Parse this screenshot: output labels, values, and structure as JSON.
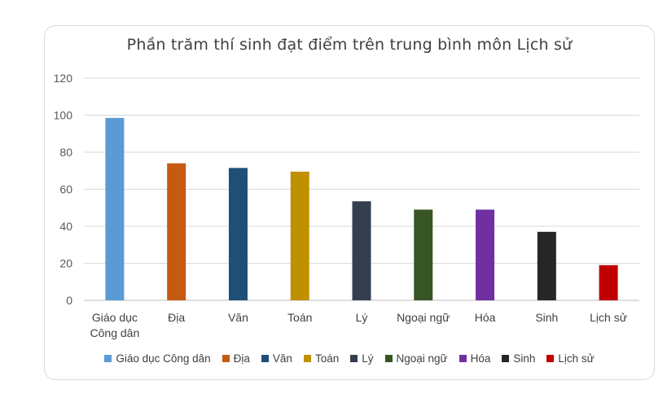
{
  "chart_data": {
    "type": "bar",
    "title": "Phần trăm thí sinh đạt điểm trên trung bình môn Lịch sử",
    "categories": [
      "Giáo dục Công dân",
      "Địa",
      "Văn",
      "Toán",
      "Lý",
      "Ngoại ngữ",
      "Hóa",
      "Sinh",
      "Lịch sử"
    ],
    "category_labels": [
      [
        "Giáo dục",
        "Công dân"
      ],
      [
        "Địa"
      ],
      [
        "Văn"
      ],
      [
        "Toán"
      ],
      [
        "Lý"
      ],
      [
        "Ngoại ngữ"
      ],
      [
        "Hóa"
      ],
      [
        "Sinh"
      ],
      [
        "Lịch sử"
      ]
    ],
    "values": [
      98.5,
      74,
      71.5,
      69.5,
      53.5,
      49,
      49,
      37,
      19
    ],
    "colors": [
      "#5b9bd5",
      "#c55a11",
      "#1f4e79",
      "#bf9000",
      "#333f50",
      "#375623",
      "#7030a0",
      "#262626",
      "#c00000"
    ],
    "ylim": [
      0,
      120
    ],
    "yticks": [
      0,
      20,
      40,
      60,
      80,
      100,
      120
    ],
    "grid": true,
    "legend_position": "bottom",
    "xlabel": "",
    "ylabel": ""
  }
}
